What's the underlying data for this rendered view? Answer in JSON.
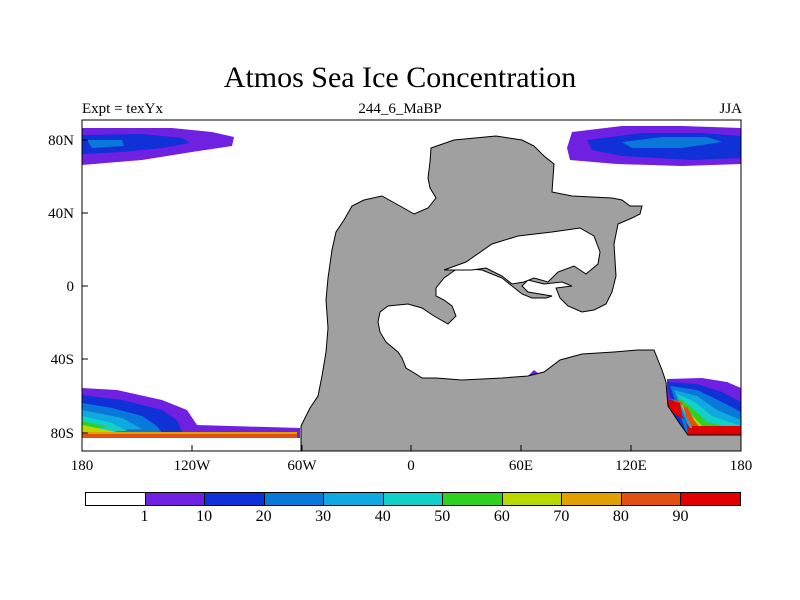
{
  "title": "Atmos Sea Ice Concentration",
  "subtitle_left": "Expt = texYx",
  "subtitle_center": "244_6_MaBP",
  "subtitle_right": "JJA",
  "x_ticks": [
    "180",
    "120W",
    "60W",
    "0",
    "60E",
    "120E",
    "180"
  ],
  "y_ticks": [
    "80N",
    "40N",
    "0",
    "40S",
    "80S"
  ],
  "colorbar": {
    "labels": [
      "1",
      "10",
      "20",
      "30",
      "40",
      "50",
      "60",
      "70",
      "80",
      "90"
    ],
    "colors": [
      "#ffffff",
      "#7020e0",
      "#1030d8",
      "#0a78d8",
      "#10a8e0",
      "#10d0c8",
      "#30d020",
      "#b8d800",
      "#e0a000",
      "#e05010",
      "#e00000"
    ]
  },
  "colors": {
    "land": "#a0a0a0",
    "ocean": "#ffffff"
  }
}
